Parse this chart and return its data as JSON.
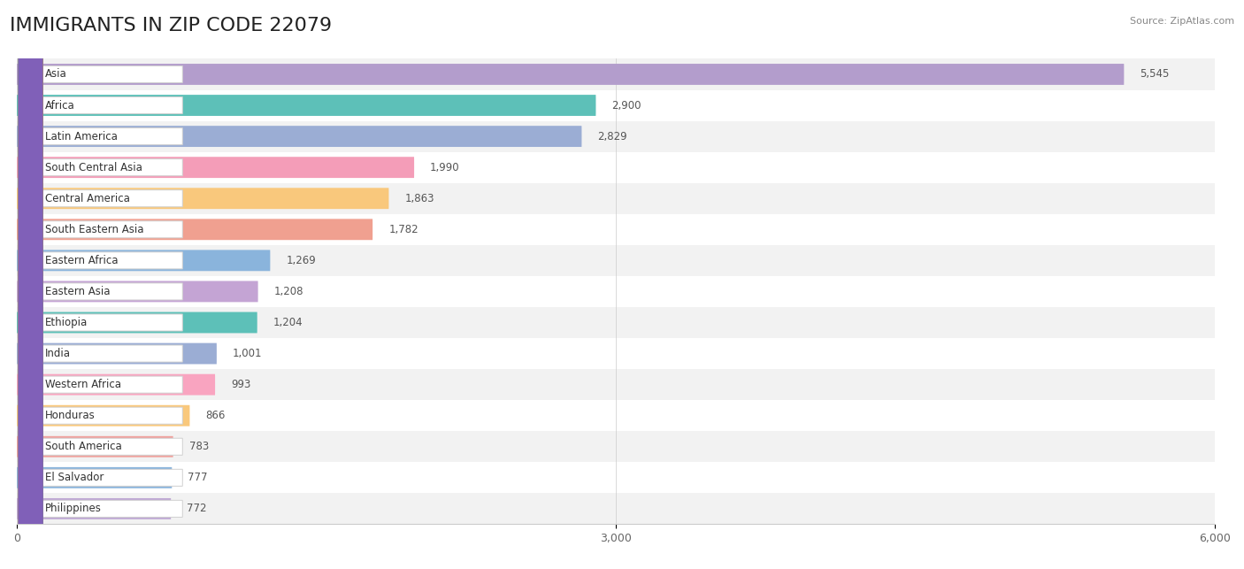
{
  "title": "IMMIGRANTS IN ZIP CODE 22079",
  "source": "Source: ZipAtlas.com",
  "categories": [
    "Asia",
    "Africa",
    "Latin America",
    "South Central Asia",
    "Central America",
    "South Eastern Asia",
    "Eastern Africa",
    "Eastern Asia",
    "Ethiopia",
    "India",
    "Western Africa",
    "Honduras",
    "South America",
    "El Salvador",
    "Philippines"
  ],
  "values": [
    5545,
    2900,
    2829,
    1990,
    1863,
    1782,
    1269,
    1208,
    1204,
    1001,
    993,
    866,
    783,
    777,
    772
  ],
  "bar_colors": [
    "#b39dcc",
    "#5dc0b8",
    "#9badd4",
    "#f49db8",
    "#f9c87c",
    "#f0a090",
    "#8ab4dc",
    "#c4a4d4",
    "#5dc0b8",
    "#9badd4",
    "#f9a4c0",
    "#f9c87c",
    "#f0a09c",
    "#8ab4dc",
    "#bfa8d4"
  ],
  "dot_colors": [
    "#8060b8",
    "#30b0a0",
    "#6070b8",
    "#e060a0",
    "#e0a030",
    "#c87060",
    "#5080c0",
    "#9060b8",
    "#30b0a0",
    "#6070b8",
    "#e87090",
    "#e0a030",
    "#c87060",
    "#5080c0",
    "#8060b8"
  ],
  "xlim": [
    0,
    6000
  ],
  "xticks": [
    0,
    3000,
    6000
  ],
  "background_color": "#ffffff",
  "row_bg_even": "#f2f2f2",
  "row_bg_odd": "#ffffff",
  "title_fontsize": 16,
  "value_fontsize": 8.5,
  "label_fontsize": 8.5
}
